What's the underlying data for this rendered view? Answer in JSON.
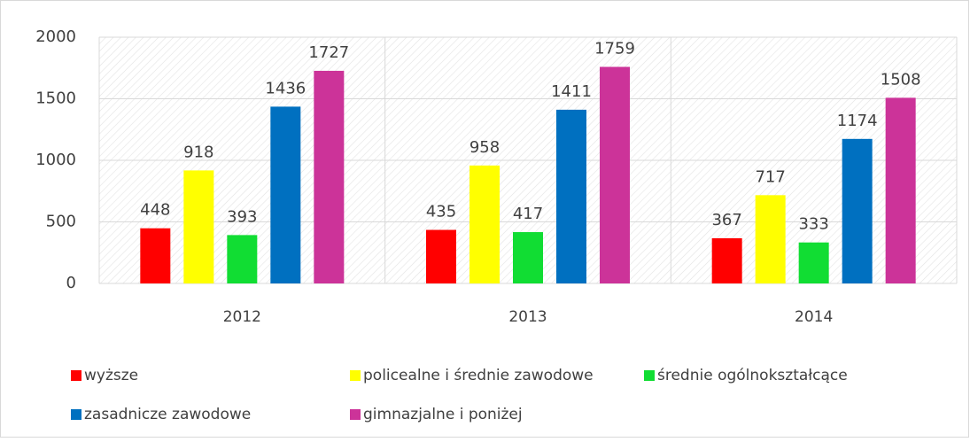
{
  "chart_data": {
    "type": "bar",
    "categories": [
      "2012",
      "2013",
      "2014"
    ],
    "series": [
      {
        "name": "wyższe",
        "color": "#ff0000",
        "values": [
          448,
          435,
          367
        ]
      },
      {
        "name": "policealne i średnie zawodowe",
        "color": "#ffff00",
        "values": [
          918,
          958,
          717
        ]
      },
      {
        "name": "średnie ogólnokształcące",
        "color": "#11dd33",
        "values": [
          393,
          417,
          333
        ]
      },
      {
        "name": "zasadnicze zawodowe",
        "color": "#0070c0",
        "values": [
          1436,
          1411,
          1174
        ]
      },
      {
        "name": "gimnazjalne i poniżej",
        "color": "#cc3399",
        "values": [
          1727,
          1759,
          1508
        ]
      }
    ],
    "ylim": [
      0,
      2000
    ],
    "yticks": [
      0,
      500,
      1000,
      1500,
      2000
    ],
    "grid": true,
    "legend": "bottom"
  }
}
